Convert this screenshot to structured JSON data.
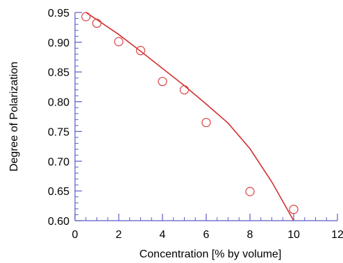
{
  "chart_data": {
    "type": "scatter",
    "title": "",
    "xlabel": "Concentration [% by volume]",
    "ylabel": "Degree of Polarization",
    "xlim": [
      0,
      12
    ],
    "ylim": [
      0.6,
      0.95
    ],
    "x_ticks": [
      0,
      2,
      4,
      6,
      8,
      10,
      12
    ],
    "x_tick_labels": [
      "0",
      "2",
      "4",
      "6",
      "8",
      "10",
      "12"
    ],
    "y_ticks": [
      0.6,
      0.65,
      0.7,
      0.75,
      0.8,
      0.85,
      0.9,
      0.95
    ],
    "y_tick_labels": [
      "0.60",
      "0.65",
      "0.70",
      "0.75",
      "0.80",
      "0.85",
      "0.90",
      "0.95"
    ],
    "grid": false,
    "series": [
      {
        "type": "scatter",
        "marker": "open-circle",
        "color": "#d94040",
        "x": [
          0.5,
          1,
          2,
          3,
          4,
          5,
          6,
          8,
          10
        ],
        "y": [
          0.943,
          0.932,
          0.901,
          0.886,
          0.834,
          0.82,
          0.765,
          0.649,
          0.619
        ]
      },
      {
        "type": "line",
        "color": "#d12f2f",
        "x": [
          0.5,
          1,
          2,
          3,
          4,
          5,
          6,
          7,
          8,
          9,
          10
        ],
        "y": [
          0.95,
          0.938,
          0.913,
          0.885,
          0.856,
          0.827,
          0.796,
          0.764,
          0.721,
          0.665,
          0.6
        ]
      }
    ]
  }
}
